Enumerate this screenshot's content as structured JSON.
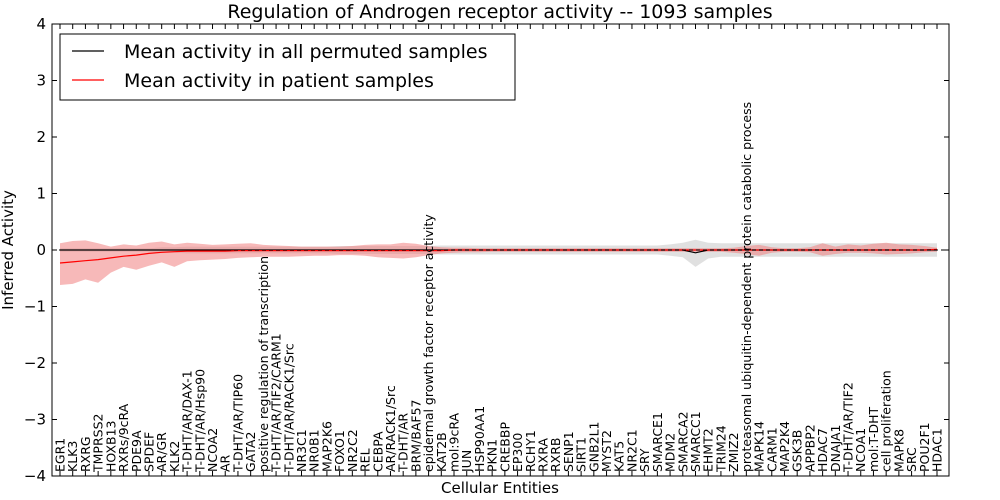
{
  "chart_data": {
    "type": "line",
    "title": "Regulation of Androgen receptor activity -- 1093 samples",
    "xlabel": "Cellular Entities",
    "ylabel": "Inferred Activity",
    "ylim": [
      -4,
      4
    ],
    "yticks": [
      "4",
      "3",
      "2",
      "1",
      "0",
      "−1",
      "−2",
      "−3",
      "−4"
    ],
    "ytick_values": [
      4,
      3,
      2,
      1,
      0,
      -1,
      -2,
      -3,
      -4
    ],
    "grid": false,
    "legend_position": "top-left",
    "categories": [
      "EGR1",
      "KLK3",
      "RXRG",
      "TMPRSS2",
      "HOXB13",
      "RXRs/9cRA",
      "PDE9A",
      "SPDEF",
      "AR/GR",
      "KLK2",
      "T-DHT/AR/DAX-1",
      "T-DHT/AR/Hsp90",
      "NCOA2",
      "AR",
      "T-DHT/AR/TIP60",
      "GATA2",
      "positive regulation of transcription",
      "T-DHT/AR/TIF2/CARM1",
      "T-DHT/AR/RACK1/Src",
      "NR3C1",
      "NR0B1",
      "MAP2K6",
      "FOXO1",
      "NR2C2",
      "REL",
      "CEBPA",
      "AR/RACK1/Src",
      "T-DHT/AR",
      "BRM/BAF57",
      "epidermal growth factor receptor activity",
      "KAT2B",
      "mol:9cRA",
      "JUN",
      "HSP90AA1",
      "PKN1",
      "CREBBP",
      "EP300",
      "RCHY1",
      "RXRA",
      "RXRB",
      "SENP1",
      "SIRT1",
      "GNB2L1",
      "MYST2",
      "KAT5",
      "NR2C1",
      "SRY",
      "SMARCE1",
      "MDM2",
      "SMARCA2",
      "SMARCC1",
      "EHMT2",
      "TRIM24",
      "ZMIZ2",
      "proteasomal ubiquitin-dependent protein catabolic process",
      "MAPK14",
      "CARM1",
      "MAP2K4",
      "GSK3B",
      "APPBP2",
      "HDAC7",
      "DNAJA1",
      "T-DHT/AR/TIF2",
      "NCOA1",
      "mol:T-DHT",
      "cell proliferation",
      "MAPK8",
      "SRC",
      "POU2F1",
      "HDAC1"
    ],
    "series": [
      {
        "name": "Mean activity in all permuted samples",
        "color": "#000000",
        "band_color": "#bbbbbb",
        "values": [
          0,
          0,
          0,
          0,
          0,
          0,
          0,
          0,
          0,
          0,
          0,
          0,
          0,
          0,
          0,
          0,
          0,
          0,
          0,
          0,
          0,
          0,
          0,
          0,
          0,
          0,
          0,
          0,
          0,
          0,
          0,
          0,
          0,
          0,
          0,
          0,
          0,
          0,
          0,
          0,
          0,
          0,
          0,
          0,
          0,
          0,
          0,
          0,
          0,
          0,
          -0.05,
          0,
          0,
          0,
          0,
          0,
          0,
          0,
          0,
          0,
          0,
          0,
          0,
          0,
          0,
          0,
          0,
          0,
          0,
          0
        ],
        "lower": [
          -0.03,
          -0.03,
          -0.03,
          -0.03,
          -0.03,
          -0.03,
          -0.03,
          -0.03,
          -0.05,
          -0.05,
          -0.06,
          -0.06,
          -0.06,
          -0.06,
          -0.06,
          -0.06,
          -0.06,
          -0.06,
          -0.06,
          -0.06,
          -0.06,
          -0.06,
          -0.07,
          -0.07,
          -0.07,
          -0.07,
          -0.07,
          -0.07,
          -0.07,
          -0.07,
          -0.08,
          -0.08,
          -0.08,
          -0.08,
          -0.08,
          -0.08,
          -0.08,
          -0.08,
          -0.08,
          -0.08,
          -0.08,
          -0.08,
          -0.08,
          -0.08,
          -0.08,
          -0.08,
          -0.08,
          -0.08,
          -0.1,
          -0.13,
          -0.3,
          -0.15,
          -0.12,
          -0.12,
          -0.12,
          -0.12,
          -0.12,
          -0.12,
          -0.12,
          -0.12,
          -0.12,
          -0.12,
          -0.12,
          -0.12,
          -0.12,
          -0.12,
          -0.12,
          -0.12,
          -0.12,
          -0.12
        ],
        "upper": [
          0.03,
          0.03,
          0.03,
          0.03,
          0.03,
          0.03,
          0.03,
          0.03,
          0.05,
          0.05,
          0.06,
          0.06,
          0.06,
          0.06,
          0.06,
          0.06,
          0.06,
          0.06,
          0.06,
          0.06,
          0.06,
          0.06,
          0.07,
          0.07,
          0.07,
          0.07,
          0.07,
          0.07,
          0.07,
          0.07,
          0.08,
          0.08,
          0.08,
          0.08,
          0.08,
          0.08,
          0.08,
          0.08,
          0.08,
          0.08,
          0.08,
          0.08,
          0.08,
          0.08,
          0.08,
          0.08,
          0.08,
          0.08,
          0.1,
          0.13,
          0.18,
          0.13,
          0.12,
          0.12,
          0.12,
          0.12,
          0.12,
          0.12,
          0.12,
          0.12,
          0.12,
          0.12,
          0.12,
          0.12,
          0.12,
          0.12,
          0.12,
          0.12,
          0.12,
          0.12
        ]
      },
      {
        "name": "Mean activity in patient samples",
        "color": "#ff0000",
        "band_color": "#f08080",
        "values": [
          -0.23,
          -0.21,
          -0.19,
          -0.17,
          -0.14,
          -0.11,
          -0.09,
          -0.06,
          -0.04,
          -0.03,
          -0.02,
          -0.02,
          -0.02,
          -0.02,
          -0.01,
          -0.01,
          -0.01,
          -0.01,
          -0.01,
          -0.01,
          -0.01,
          -0.01,
          -0.01,
          -0.01,
          -0.01,
          -0.01,
          -0.01,
          -0.01,
          -0.01,
          -0.01,
          -0.01,
          0,
          0,
          0,
          0,
          0,
          0,
          0,
          0,
          0,
          0,
          0,
          0,
          0,
          0,
          0,
          0,
          0,
          0,
          0,
          0,
          0,
          0,
          0,
          0,
          0,
          0,
          0,
          0,
          0,
          0,
          0,
          0,
          0,
          0,
          0,
          0,
          0,
          0,
          0.01
        ],
        "lower": [
          -0.62,
          -0.6,
          -0.52,
          -0.58,
          -0.4,
          -0.3,
          -0.35,
          -0.28,
          -0.22,
          -0.3,
          -0.2,
          -0.18,
          -0.17,
          -0.16,
          -0.14,
          -0.13,
          -0.12,
          -0.12,
          -0.12,
          -0.11,
          -0.1,
          -0.1,
          -0.09,
          -0.09,
          -0.1,
          -0.13,
          -0.14,
          -0.15,
          -0.13,
          -0.09,
          -0.06,
          -0.05,
          -0.04,
          -0.04,
          -0.03,
          -0.03,
          -0.03,
          -0.03,
          -0.03,
          -0.03,
          -0.03,
          -0.03,
          -0.03,
          -0.03,
          -0.03,
          -0.03,
          -0.03,
          -0.03,
          -0.03,
          -0.03,
          -0.03,
          -0.03,
          -0.03,
          -0.05,
          -0.07,
          -0.1,
          -0.05,
          -0.03,
          -0.03,
          -0.04,
          -0.1,
          -0.07,
          -0.05,
          -0.05,
          -0.06,
          -0.08,
          -0.07,
          -0.06,
          -0.04,
          -0.03
        ],
        "upper": [
          0.12,
          0.16,
          0.17,
          0.12,
          0.06,
          0.1,
          0.08,
          0.13,
          0.15,
          0.1,
          0.13,
          0.11,
          0.09,
          0.1,
          0.11,
          0.12,
          0.09,
          0.08,
          0.07,
          0.06,
          0.06,
          0.06,
          0.06,
          0.07,
          0.09,
          0.1,
          0.1,
          0.13,
          0.11,
          0.07,
          0.05,
          0.04,
          0.04,
          0.03,
          0.03,
          0.03,
          0.03,
          0.03,
          0.03,
          0.03,
          0.03,
          0.03,
          0.03,
          0.03,
          0.03,
          0.03,
          0.03,
          0.03,
          0.03,
          0.03,
          0.03,
          0.03,
          0.03,
          0.04,
          0.07,
          0.09,
          0.05,
          0.03,
          0.03,
          0.05,
          0.12,
          0.06,
          0.1,
          0.08,
          0.11,
          0.13,
          0.1,
          0.09,
          0.07,
          0.04
        ]
      }
    ]
  }
}
